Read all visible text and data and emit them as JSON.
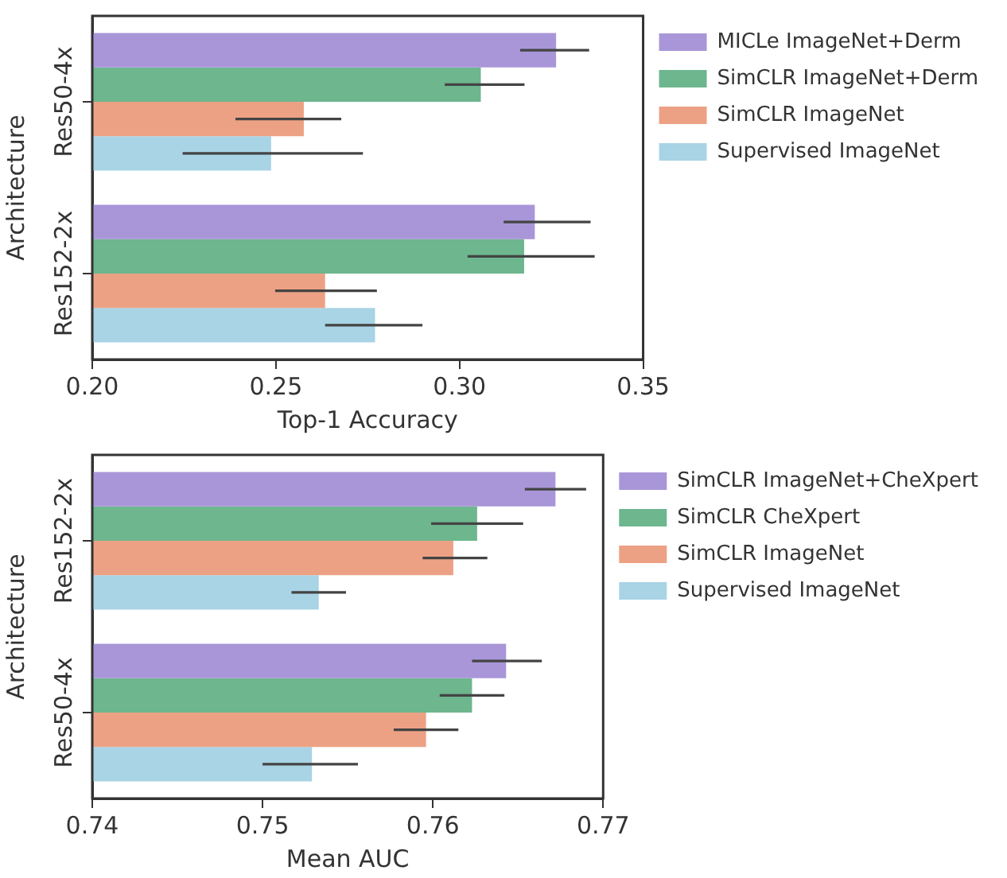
{
  "chart_data": [
    {
      "type": "bar",
      "orientation": "horizontal",
      "xlabel": "Top-1 Accuracy",
      "ylabel": "Architecture",
      "categories": [
        "Res50-4x",
        "Res152-2x"
      ],
      "xlim": [
        0.2,
        0.35
      ],
      "xticks": [
        {
          "value": 0.2,
          "label": "0.20"
        },
        0.25,
        {
          "value": 0.3,
          "label": "0.30"
        },
        0.35
      ],
      "grid": false,
      "legend": "right",
      "series": [
        {
          "name": "MICLe ImageNet+Derm",
          "color": "#a996d8",
          "values": [
            0.3263,
            0.3205
          ],
          "errors": [
            [
              0.3165,
              0.3353
            ],
            [
              0.312,
              0.3357
            ]
          ]
        },
        {
          "name": "SimCLR ImageNet+Derm",
          "color": "#6db68e",
          "values": [
            0.3058,
            0.3176
          ],
          "errors": [
            [
              0.296,
              0.3177
            ],
            [
              0.3022,
              0.3368
            ]
          ]
        },
        {
          "name": "SimCLR ImageNet",
          "color": "#eda184",
          "values": [
            0.2576,
            0.2634
          ],
          "errors": [
            [
              0.239,
              0.2678
            ],
            [
              0.2498,
              0.2775
            ]
          ]
        },
        {
          "name": "Supervised ImageNet",
          "color": "#a8d4e5",
          "values": [
            0.2487,
            0.277
          ],
          "errors": [
            [
              0.2246,
              0.2737
            ],
            [
              0.2634,
              0.2899
            ]
          ]
        }
      ]
    },
    {
      "type": "bar",
      "orientation": "horizontal",
      "xlabel": "Mean AUC",
      "ylabel": "Architecture",
      "categories": [
        "Res152-2x",
        "Res50-4x"
      ],
      "xlim": [
        0.74,
        0.77
      ],
      "xticks": [
        0.74,
        0.75,
        0.76,
        0.77
      ],
      "grid": false,
      "legend": "right",
      "series": [
        {
          "name": "SimCLR ImageNet+CheXpert",
          "color": "#a996d8",
          "values": [
            0.7672,
            0.7643
          ],
          "errors": [
            [
              0.7654,
              0.769
            ],
            [
              0.7623,
              0.7664
            ]
          ]
        },
        {
          "name": "SimCLR CheXpert",
          "color": "#6db68e",
          "values": [
            0.7626,
            0.7623
          ],
          "errors": [
            [
              0.7599,
              0.7653
            ],
            [
              0.7604,
              0.7642
            ]
          ]
        },
        {
          "name": "SimCLR ImageNet",
          "color": "#eda184",
          "values": [
            0.7612,
            0.7596
          ],
          "errors": [
            [
              0.7594,
              0.7632
            ],
            [
              0.7577,
              0.7615
            ]
          ]
        },
        {
          "name": "Supervised ImageNet",
          "color": "#a8d4e5",
          "values": [
            0.7533,
            0.7529
          ],
          "errors": [
            [
              0.7517,
              0.7549
            ],
            [
              0.75,
              0.7556
            ]
          ]
        }
      ]
    }
  ]
}
